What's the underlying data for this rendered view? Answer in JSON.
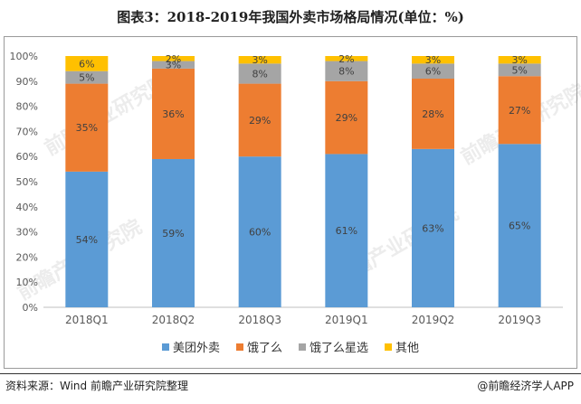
{
  "title": "图表3：2018-2019年我国外卖市场格局情况(单位：%)",
  "source": "资料来源：Wind 前瞻产业研究院整理",
  "brand": "@前瞻经济学人APP",
  "watermark": "前瞻产业研究院",
  "chart_data": {
    "type": "bar",
    "stacked": true,
    "categories": [
      "2018Q1",
      "2018Q2",
      "2018Q3",
      "2019Q1",
      "2019Q2",
      "2019Q3"
    ],
    "series": [
      {
        "name": "美团外卖",
        "values": [
          54,
          59,
          60,
          61,
          63,
          65
        ],
        "color": "#5b9bd5"
      },
      {
        "name": "饿了么",
        "values": [
          35,
          36,
          29,
          29,
          28,
          27
        ],
        "color": "#ed7d31"
      },
      {
        "name": "饿了么星选",
        "values": [
          5,
          3,
          8,
          8,
          6,
          5
        ],
        "color": "#a5a5a5"
      },
      {
        "name": "其他",
        "values": [
          6,
          2,
          3,
          2,
          3,
          3
        ],
        "color": "#ffc000"
      }
    ],
    "yticks": [
      "0%",
      "10%",
      "20%",
      "30%",
      "40%",
      "50%",
      "60%",
      "70%",
      "80%",
      "90%",
      "100%"
    ],
    "ylim": [
      0,
      100
    ],
    "legend_position": "bottom"
  }
}
